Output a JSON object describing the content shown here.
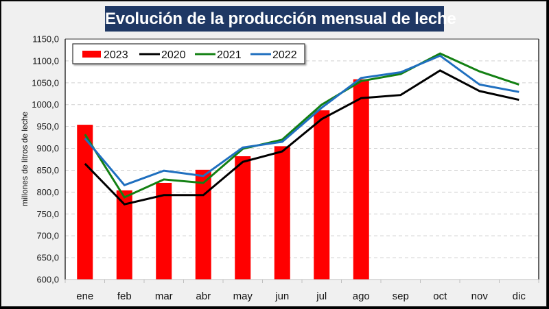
{
  "chart_data": {
    "type": "bar",
    "title": "Evolución de la producción mensual de leche",
    "xlabel": "",
    "ylabel": "millones de litros de leche",
    "ylim": [
      600,
      1150
    ],
    "ytick_step": 50,
    "ytick_labels": [
      "600,0",
      "650,0",
      "700,0",
      "750,0",
      "800,0",
      "850,0",
      "900,0",
      "950,0",
      "1000,0",
      "1050,0",
      "1100,0",
      "1150,0"
    ],
    "grid": true,
    "legend_position": "top-left",
    "categories": [
      "ene",
      "feb",
      "mar",
      "abr",
      "may",
      "jun",
      "jul",
      "ago",
      "sep",
      "oct",
      "nov",
      "dic"
    ],
    "series": [
      {
        "name": "2023",
        "kind": "bar",
        "color": "#ff0000",
        "values": [
          954,
          804,
          821,
          851,
          882,
          905,
          987,
          1058,
          null,
          null,
          null,
          null
        ]
      },
      {
        "name": "2020",
        "kind": "line",
        "color": "#000000",
        "values": [
          865,
          772,
          793,
          793,
          869,
          893,
          967,
          1015,
          1022,
          1078,
          1031,
          1011
        ]
      },
      {
        "name": "2021",
        "kind": "line",
        "color": "#138013",
        "values": [
          932,
          788,
          829,
          821,
          899,
          920,
          1000,
          1054,
          1070,
          1117,
          1076,
          1046
        ]
      },
      {
        "name": "2022",
        "kind": "line",
        "color": "#1f6fbf",
        "values": [
          923,
          816,
          849,
          837,
          902,
          915,
          993,
          1061,
          1074,
          1112,
          1046,
          1029
        ]
      }
    ]
  }
}
